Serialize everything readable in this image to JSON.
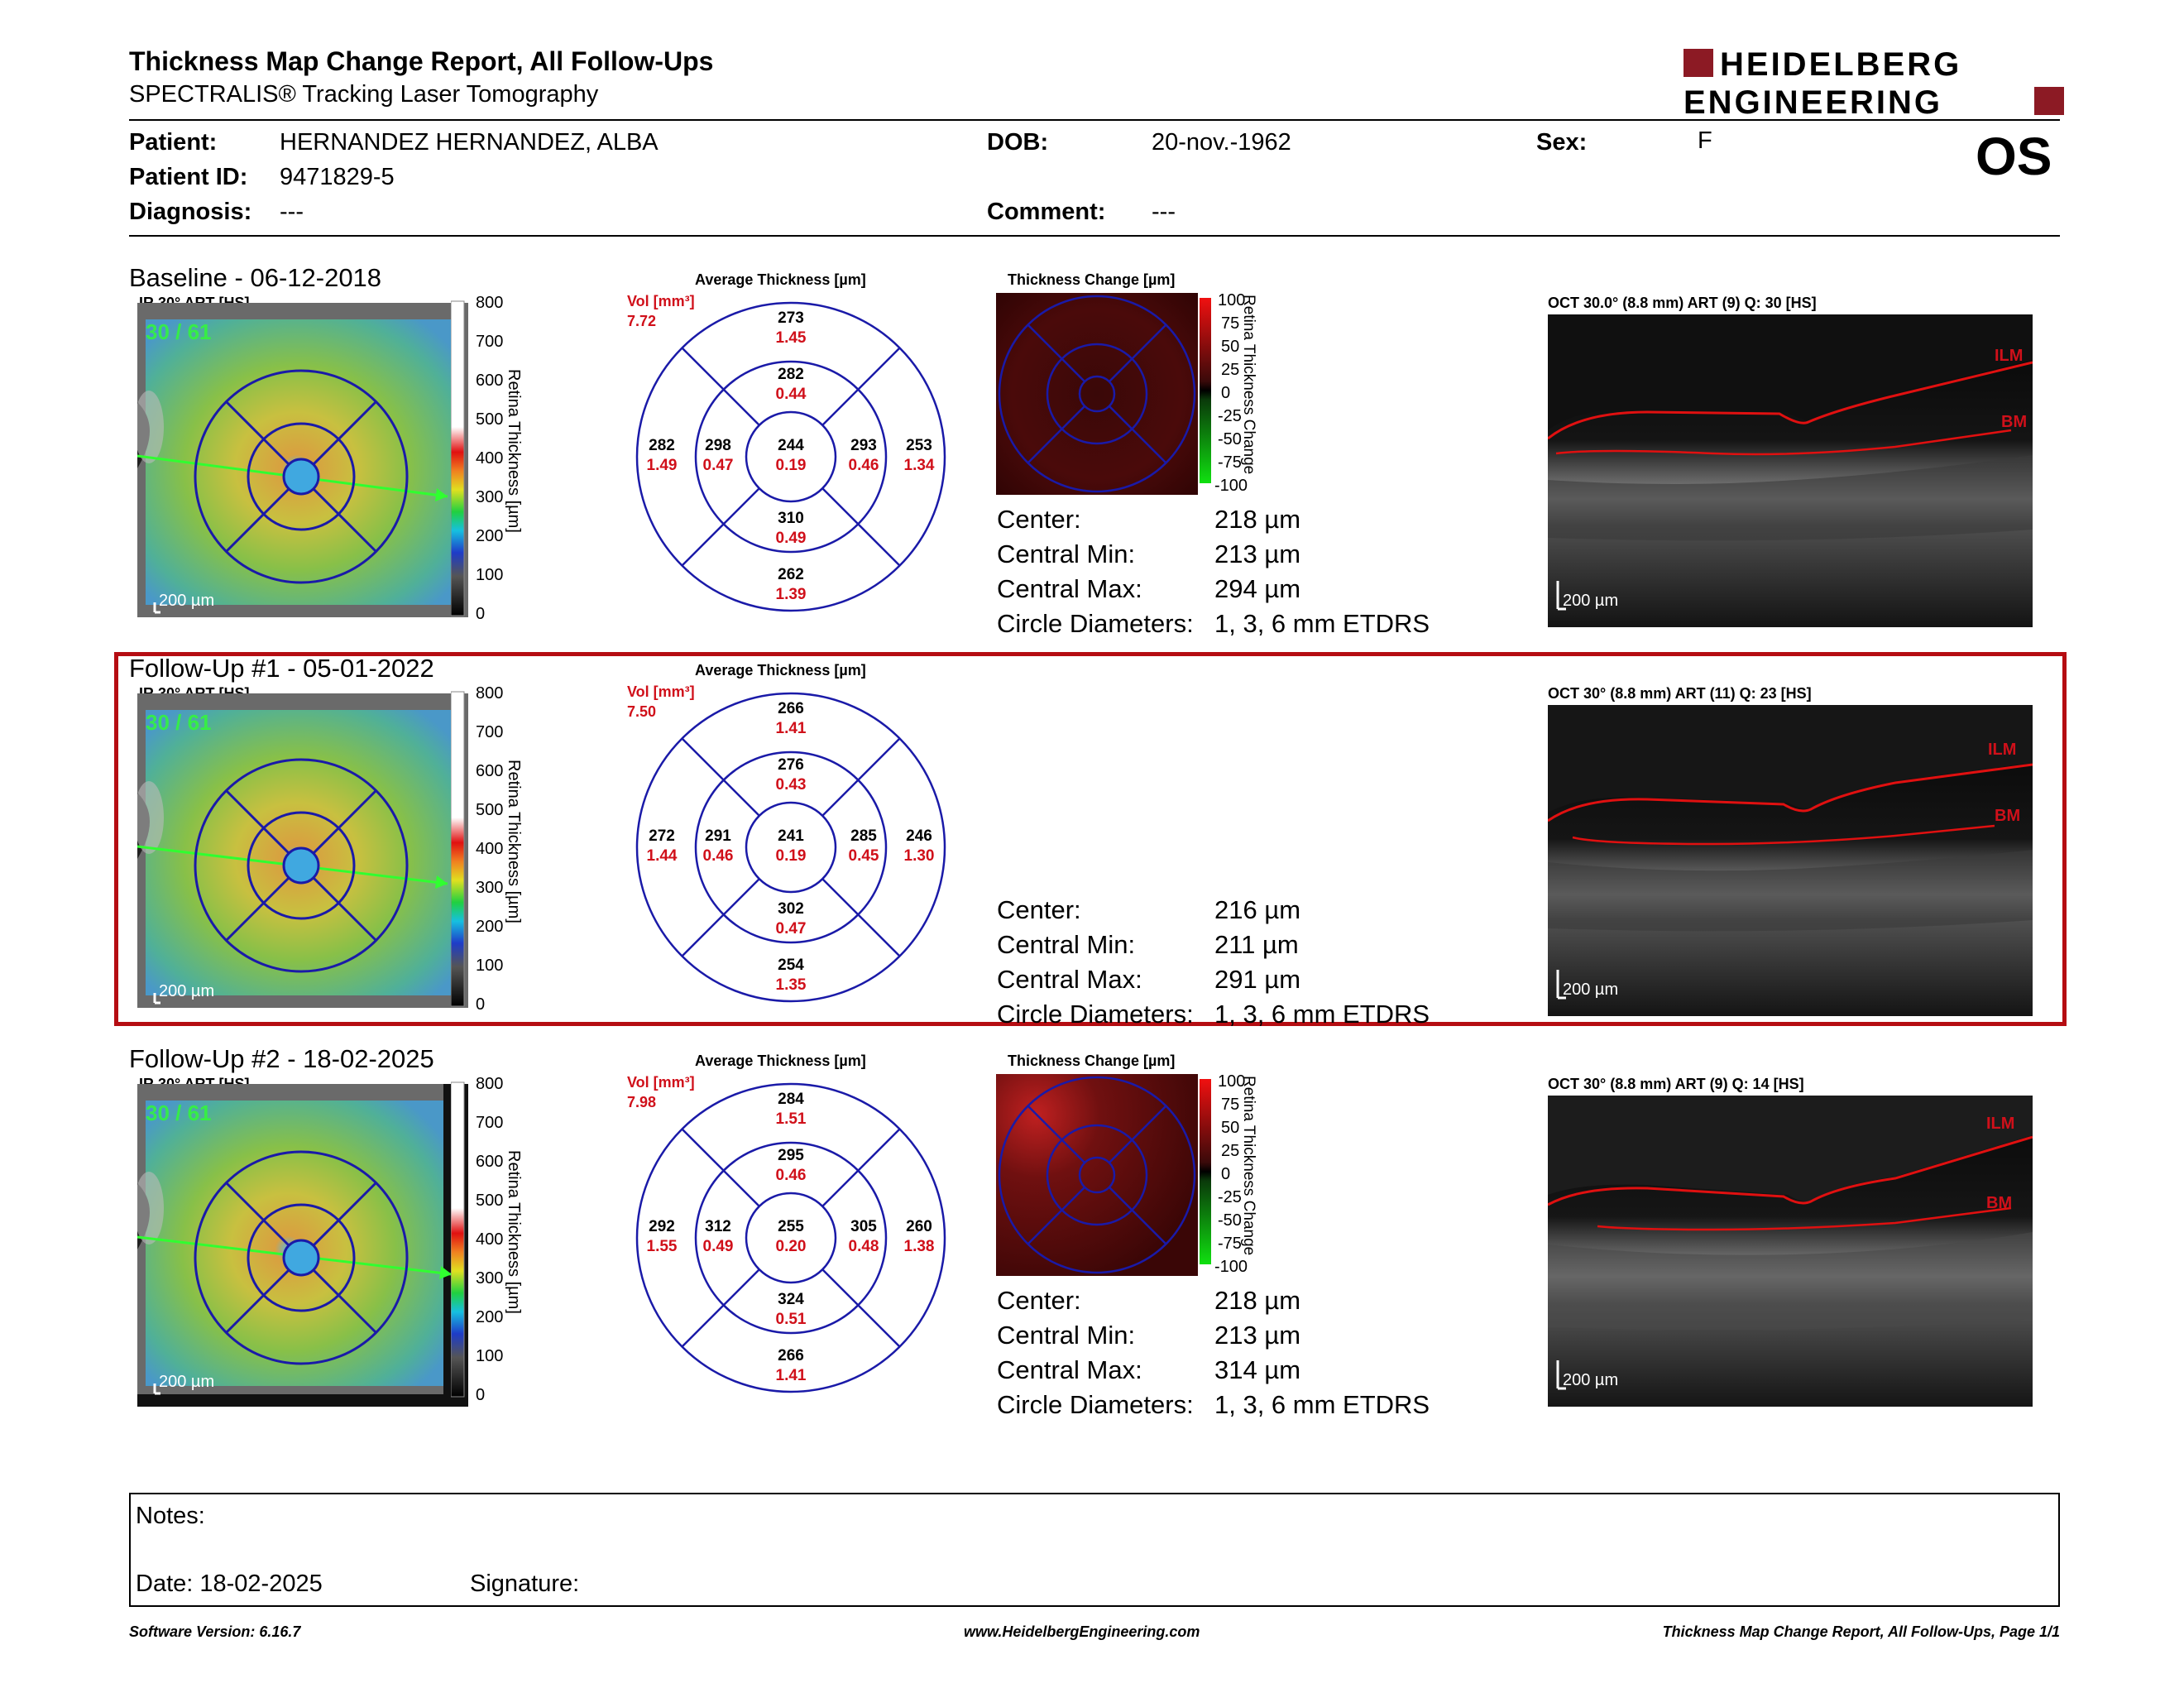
{
  "header": {
    "title": "Thickness Map Change Report, All Follow-Ups",
    "subtitle": "SPECTRALIS® Tracking Laser Tomography",
    "logo_line1": "HEIDELBERG",
    "logo_line2": "ENGINEERING"
  },
  "patient": {
    "patient_label": "Patient:",
    "patient_value": "HERNANDEZ HERNANDEZ, ALBA",
    "id_label": "Patient ID:",
    "id_value": "9471829-5",
    "diagnosis_label": "Diagnosis:",
    "diagnosis_value": "---",
    "dob_label": "DOB:",
    "dob_value": "20-nov.-1962",
    "comment_label": "Comment:",
    "comment_value": "---",
    "sex_label": "Sex:",
    "sex_value": "F",
    "eye": "OS"
  },
  "common": {
    "ir_label": "IR 30° ART [HS]",
    "ir_overlay": "30 / 61",
    "scale_label": "200 µm",
    "colorbar_ticks": [
      "800",
      "700",
      "600",
      "500",
      "400",
      "300",
      "200",
      "100",
      "0"
    ],
    "colorbar_title": "Retina Thickness [µm]",
    "avg_title": "Average Thickness [µm]",
    "vol_label": "Vol [mm³]",
    "change_title": "Thickness Change [µm]",
    "change_ticks": [
      "100",
      "75",
      "50",
      "25",
      "0",
      "-25",
      "-50",
      "-75",
      "-100"
    ],
    "change_bar_title": "Retina Thickness Change",
    "m_center": "Center:",
    "m_min": "Central Min:",
    "m_max": "Central Max:",
    "m_circle": "Circle Diameters:",
    "ilm": "ILM",
    "bm": "BM"
  },
  "sections": [
    {
      "title": "Baseline - 06-12-2018",
      "vol": "7.72",
      "etdrs": {
        "outer_sup": [
          "273",
          "1.45"
        ],
        "inner_sup": [
          "282",
          "0.44"
        ],
        "outer_temp": [
          "282",
          "1.49"
        ],
        "inner_temp": [
          "298",
          "0.47"
        ],
        "center": [
          "244",
          "0.19"
        ],
        "inner_nas": [
          "293",
          "0.46"
        ],
        "outer_nas": [
          "253",
          "1.34"
        ],
        "inner_inf": [
          "310",
          "0.49"
        ],
        "outer_inf": [
          "262",
          "1.39"
        ]
      },
      "center": "218 µm",
      "min": "213 µm",
      "max": "294 µm",
      "circle": "1, 3, 6 mm ETDRS",
      "oct_label": "OCT 30.0° (8.8 mm) ART (9) Q: 30 [HS]"
    },
    {
      "title": "Follow-Up #1 - 05-01-2022",
      "vol": "7.50",
      "etdrs": {
        "outer_sup": [
          "266",
          "1.41"
        ],
        "inner_sup": [
          "276",
          "0.43"
        ],
        "outer_temp": [
          "272",
          "1.44"
        ],
        "inner_temp": [
          "291",
          "0.46"
        ],
        "center": [
          "241",
          "0.19"
        ],
        "inner_nas": [
          "285",
          "0.45"
        ],
        "outer_nas": [
          "246",
          "1.30"
        ],
        "inner_inf": [
          "302",
          "0.47"
        ],
        "outer_inf": [
          "254",
          "1.35"
        ]
      },
      "center": "216 µm",
      "min": "211 µm",
      "max": "291 µm",
      "circle": "1, 3, 6 mm ETDRS",
      "oct_label": "OCT 30° (8.8 mm) ART (11) Q: 23 [HS]"
    },
    {
      "title": "Follow-Up #2 - 18-02-2025",
      "vol": "7.98",
      "etdrs": {
        "outer_sup": [
          "284",
          "1.51"
        ],
        "inner_sup": [
          "295",
          "0.46"
        ],
        "outer_temp": [
          "292",
          "1.55"
        ],
        "inner_temp": [
          "312",
          "0.49"
        ],
        "center": [
          "255",
          "0.20"
        ],
        "inner_nas": [
          "305",
          "0.48"
        ],
        "outer_nas": [
          "260",
          "1.38"
        ],
        "inner_inf": [
          "324",
          "0.51"
        ],
        "outer_inf": [
          "266",
          "1.41"
        ]
      },
      "center": "218 µm",
      "min": "213 µm",
      "max": "314 µm",
      "circle": "1, 3, 6 mm ETDRS",
      "oct_label": "OCT 30° (8.8 mm) ART (9) Q: 14 [HS]"
    }
  ],
  "notes": {
    "notes_label": "Notes:",
    "date_label": "Date: 18-02-2025",
    "signature_label": "Signature:"
  },
  "footer": {
    "left": "Software Version: 6.16.7",
    "center": "www.HeidelbergEngineering.com",
    "right": "Thickness Map Change Report, All Follow-Ups, Page 1/1"
  },
  "colors": {
    "brand_red": "#8c1a24",
    "grid_blue": "#1a1aa8",
    "value_red": "#d0101a",
    "highlight_border": "#b50d12"
  }
}
